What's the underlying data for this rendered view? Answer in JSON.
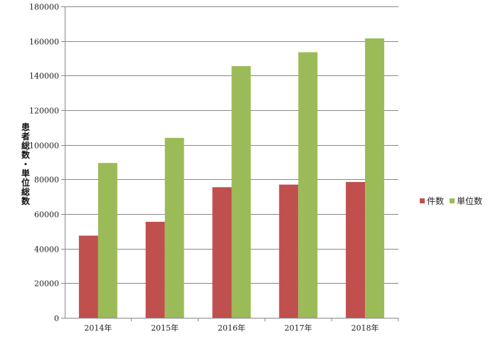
{
  "chart_data": {
    "type": "bar",
    "categories": [
      "2014年",
      "2015年",
      "2016年",
      "2017年",
      "2018年"
    ],
    "series": [
      {
        "name": "件数",
        "color": "#c0504d",
        "values": [
          47500,
          55500,
          75500,
          77000,
          78500
        ]
      },
      {
        "name": "単位数",
        "color": "#9bbb59",
        "values": [
          89500,
          104000,
          145500,
          153500,
          161500
        ]
      }
    ],
    "title": "",
    "xlabel": "",
    "ylabel": "患者総数・単位総数",
    "ylim": [
      0,
      180000
    ],
    "yticks": [
      0,
      20000,
      40000,
      60000,
      80000,
      100000,
      120000,
      140000,
      160000,
      180000
    ],
    "grid": true,
    "legend_position": "right"
  }
}
